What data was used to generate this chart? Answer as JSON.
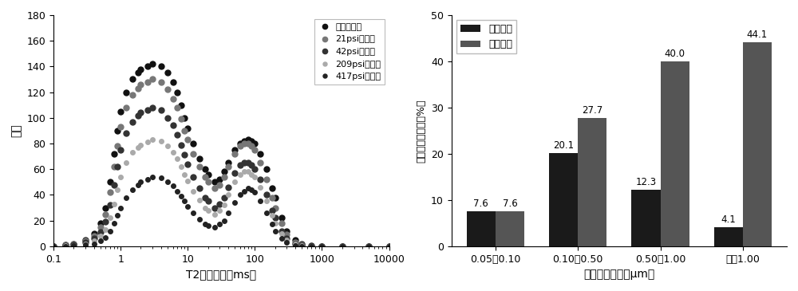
{
  "left_title": "",
  "left_xlabel": "T2弛豫时间（ms）",
  "left_ylabel": "幅度",
  "left_xlim": [
    0.1,
    10000
  ],
  "left_ylim": [
    0,
    180
  ],
  "left_yticks": [
    0,
    20,
    40,
    60,
    80,
    100,
    120,
    140,
    160,
    180
  ],
  "legend_labels": [
    "饱和水状态",
    "21psi离心后",
    "42psi离心后",
    "209psi离心后",
    "417psi离心后"
  ],
  "legend_colors": [
    "#1a1a1a",
    "#666666",
    "#333333",
    "#999999",
    "#111111"
  ],
  "right_xlabel": "喉道半径区间（μm）",
  "right_ylabel": "可动流体饱和度（%）",
  "right_ylim": [
    0,
    50
  ],
  "right_yticks": [
    0,
    10,
    20,
    30,
    40,
    50
  ],
  "right_categories": [
    "0.05～0.10",
    "0.10～0.50",
    "0.50～1.00",
    "大于1.00"
  ],
  "freq_values": [
    7.6,
    20.1,
    12.3,
    4.1
  ],
  "cumul_values": [
    7.6,
    27.7,
    40.0,
    44.1
  ],
  "bar_color_freq": "#1a1a1a",
  "bar_color_cumul": "#555555",
  "right_legend_labels": [
    "频率分布",
    "累积分布"
  ],
  "curve_data": {
    "saturated": {
      "x": [
        0.1,
        0.15,
        0.2,
        0.3,
        0.4,
        0.5,
        0.6,
        0.7,
        0.8,
        0.9,
        1.0,
        1.2,
        1.5,
        1.8,
        2.0,
        2.5,
        3.0,
        4.0,
        5.0,
        6.0,
        7.0,
        8.0,
        9.0,
        10.0,
        12.0,
        15.0,
        18.0,
        20.0,
        25.0,
        30.0,
        35.0,
        40.0,
        50.0,
        60.0,
        70.0,
        80.0,
        90.0,
        100.0,
        120.0,
        150.0,
        180.0,
        200.0,
        250.0,
        300.0,
        400.0,
        500.0,
        700.0,
        1000.0,
        2000.0,
        5000.0,
        10000.0
      ],
      "y": [
        0,
        1,
        2,
        5,
        10,
        18,
        30,
        50,
        72,
        90,
        105,
        120,
        130,
        135,
        138,
        140,
        142,
        140,
        135,
        128,
        120,
        110,
        100,
        92,
        80,
        68,
        60,
        56,
        50,
        52,
        58,
        65,
        75,
        80,
        82,
        83,
        82,
        80,
        72,
        60,
        45,
        38,
        22,
        12,
        5,
        2,
        0.5,
        0,
        0,
        0,
        0
      ]
    },
    "psi21": {
      "x": [
        0.1,
        0.15,
        0.2,
        0.3,
        0.4,
        0.5,
        0.6,
        0.7,
        0.8,
        0.9,
        1.0,
        1.2,
        1.5,
        1.8,
        2.0,
        2.5,
        3.0,
        4.0,
        5.0,
        6.0,
        7.0,
        8.0,
        9.0,
        10.0,
        12.0,
        15.0,
        18.0,
        20.0,
        25.0,
        30.0,
        35.0,
        40.0,
        50.0,
        60.0,
        70.0,
        80.0,
        90.0,
        100.0,
        120.0,
        150.0,
        180.0,
        200.0,
        250.0,
        300.0,
        400.0,
        500.0,
        700.0,
        1000.0,
        2000.0,
        5000.0,
        10000.0
      ],
      "y": [
        0,
        1,
        2,
        4,
        8,
        15,
        25,
        42,
        62,
        78,
        93,
        108,
        118,
        123,
        126,
        128,
        130,
        128,
        122,
        115,
        108,
        99,
        90,
        83,
        72,
        62,
        54,
        50,
        45,
        48,
        54,
        62,
        72,
        78,
        80,
        80,
        78,
        75,
        65,
        52,
        38,
        30,
        18,
        9,
        3,
        1,
        0,
        0,
        0,
        0,
        0
      ]
    },
    "psi42": {
      "x": [
        0.1,
        0.15,
        0.2,
        0.3,
        0.4,
        0.5,
        0.6,
        0.7,
        0.8,
        0.9,
        1.0,
        1.2,
        1.5,
        1.8,
        2.0,
        2.5,
        3.0,
        4.0,
        5.0,
        6.0,
        7.0,
        8.0,
        9.0,
        10.0,
        12.0,
        15.0,
        18.0,
        20.0,
        25.0,
        30.0,
        35.0,
        40.0,
        50.0,
        60.0,
        70.0,
        80.0,
        90.0,
        100.0,
        120.0,
        150.0,
        180.0,
        200.0,
        250.0,
        300.0,
        400.0,
        500.0,
        700.0,
        1000.0,
        2000.0,
        5000.0,
        10000.0
      ],
      "y": [
        0,
        0.5,
        1,
        3,
        6,
        11,
        19,
        32,
        48,
        62,
        75,
        88,
        97,
        102,
        104,
        106,
        108,
        106,
        100,
        94,
        87,
        79,
        71,
        64,
        54,
        45,
        38,
        35,
        30,
        33,
        38,
        46,
        57,
        63,
        65,
        65,
        63,
        60,
        52,
        40,
        28,
        22,
        12,
        6,
        2,
        0.5,
        0,
        0,
        0,
        0,
        0
      ]
    },
    "psi209": {
      "x": [
        0.1,
        0.15,
        0.2,
        0.3,
        0.4,
        0.5,
        0.6,
        0.7,
        0.8,
        0.9,
        1.0,
        1.2,
        1.5,
        1.8,
        2.0,
        2.5,
        3.0,
        4.0,
        5.0,
        6.0,
        7.0,
        8.0,
        9.0,
        10.0,
        12.0,
        15.0,
        18.0,
        20.0,
        25.0,
        30.0,
        35.0,
        40.0,
        50.0,
        60.0,
        70.0,
        80.0,
        90.0,
        100.0,
        120.0,
        150.0,
        180.0,
        200.0,
        250.0,
        300.0,
        400.0,
        500.0,
        700.0,
        1000.0,
        2000.0,
        5000.0,
        10000.0
      ],
      "y": [
        0,
        0.3,
        0.8,
        2,
        4,
        8,
        13,
        22,
        33,
        44,
        54,
        65,
        73,
        77,
        79,
        81,
        83,
        82,
        78,
        73,
        68,
        62,
        56,
        51,
        43,
        36,
        30,
        28,
        25,
        28,
        32,
        40,
        50,
        56,
        58,
        58,
        56,
        54,
        46,
        35,
        24,
        18,
        10,
        5,
        1.5,
        0.3,
        0,
        0,
        0,
        0,
        0
      ]
    },
    "psi417": {
      "x": [
        0.1,
        0.15,
        0.2,
        0.3,
        0.4,
        0.5,
        0.6,
        0.7,
        0.8,
        0.9,
        1.0,
        1.2,
        1.5,
        1.8,
        2.0,
        2.5,
        3.0,
        4.0,
        5.0,
        6.0,
        7.0,
        8.0,
        9.0,
        10.0,
        12.0,
        15.0,
        18.0,
        20.0,
        25.0,
        30.0,
        35.0,
        40.0,
        50.0,
        60.0,
        70.0,
        80.0,
        90.0,
        100.0,
        120.0,
        150.0,
        180.0,
        200.0,
        250.0,
        300.0,
        400.0,
        500.0,
        700.0,
        1000.0,
        2000.0,
        5000.0,
        10000.0
      ],
      "y": [
        0,
        0.2,
        0.5,
        1,
        2,
        4,
        7,
        12,
        18,
        24,
        30,
        38,
        44,
        48,
        50,
        52,
        54,
        53,
        50,
        47,
        43,
        39,
        35,
        31,
        26,
        21,
        17,
        16,
        15,
        17,
        20,
        26,
        34,
        40,
        43,
        45,
        44,
        42,
        35,
        26,
        17,
        12,
        6,
        3,
        0.8,
        0.1,
        0,
        0,
        0,
        0,
        0
      ]
    }
  }
}
